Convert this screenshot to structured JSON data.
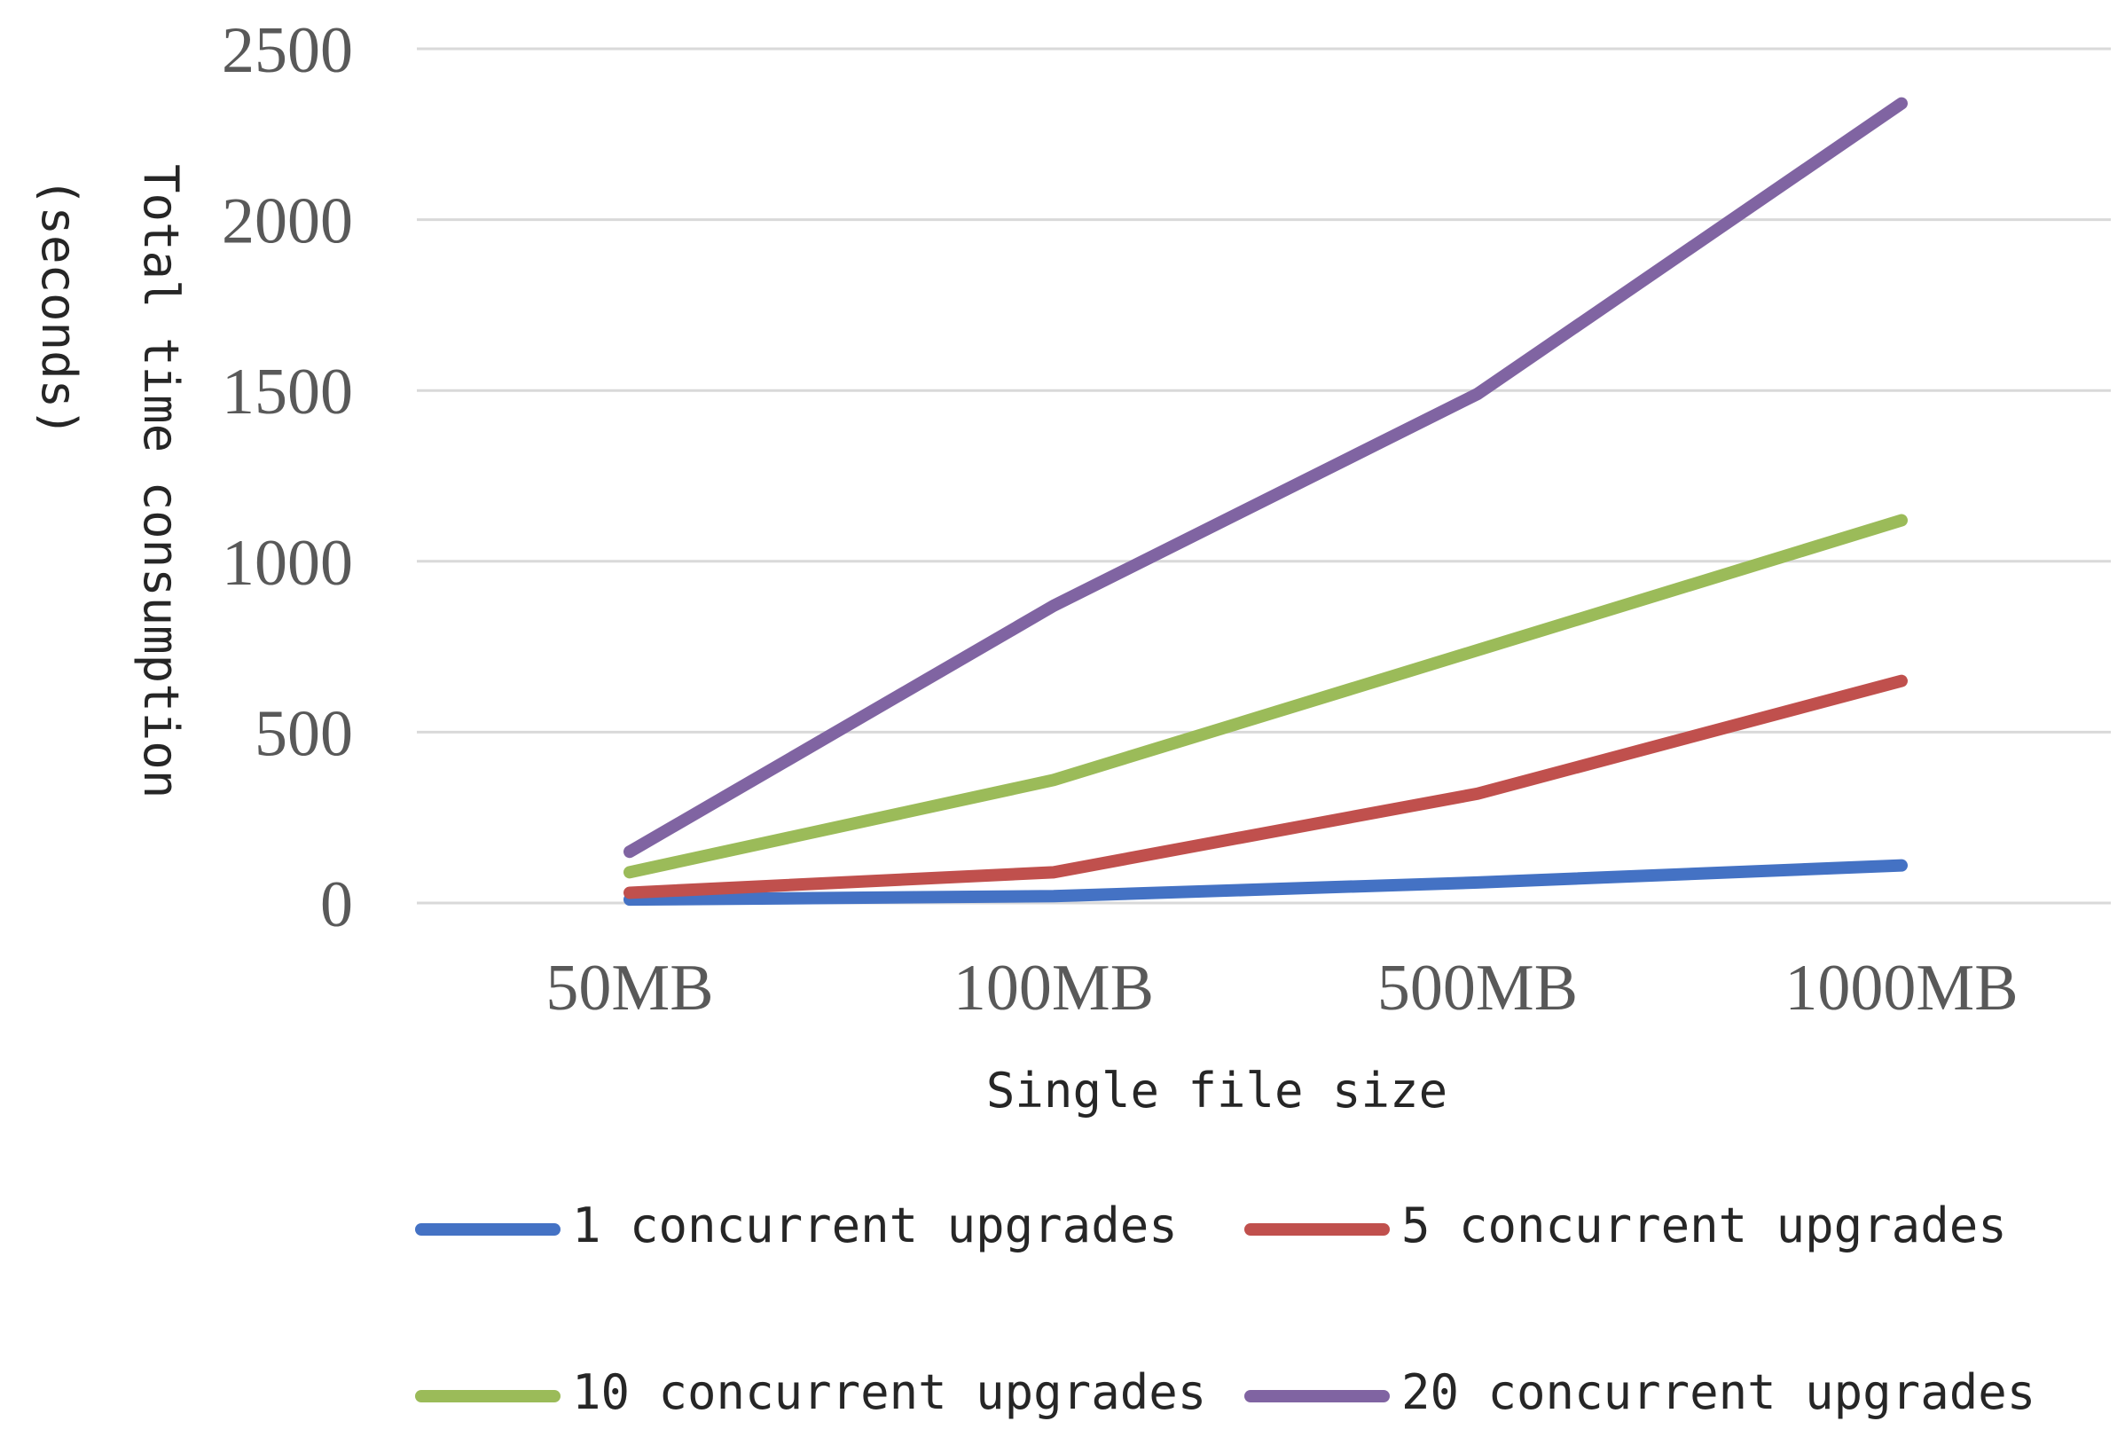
{
  "chart_data": {
    "type": "line",
    "title": "",
    "xlabel": "Single file size",
    "ylabel_line1": "Total time consumption",
    "ylabel_line2": "(seconds)",
    "categories": [
      "50MB",
      "100MB",
      "500MB",
      "1000MB"
    ],
    "ylim": [
      0,
      2500
    ],
    "yticks": [
      0,
      500,
      1000,
      1500,
      2000,
      2500
    ],
    "grid": true,
    "legend_position": "bottom",
    "series": [
      {
        "name": "1 concurrent upgrades",
        "color": "#4472c4",
        "values": [
          10,
          20,
          60,
          110
        ]
      },
      {
        "name": "5 concurrent upgrades",
        "color": "#c0504d",
        "values": [
          30,
          90,
          320,
          650
        ]
      },
      {
        "name": "10 concurrent upgrades",
        "color": "#9bbb59",
        "values": [
          90,
          360,
          740,
          1120
        ]
      },
      {
        "name": "20 concurrent upgrades",
        "color": "#8064a2",
        "values": [
          150,
          870,
          1490,
          2340
        ]
      }
    ]
  }
}
